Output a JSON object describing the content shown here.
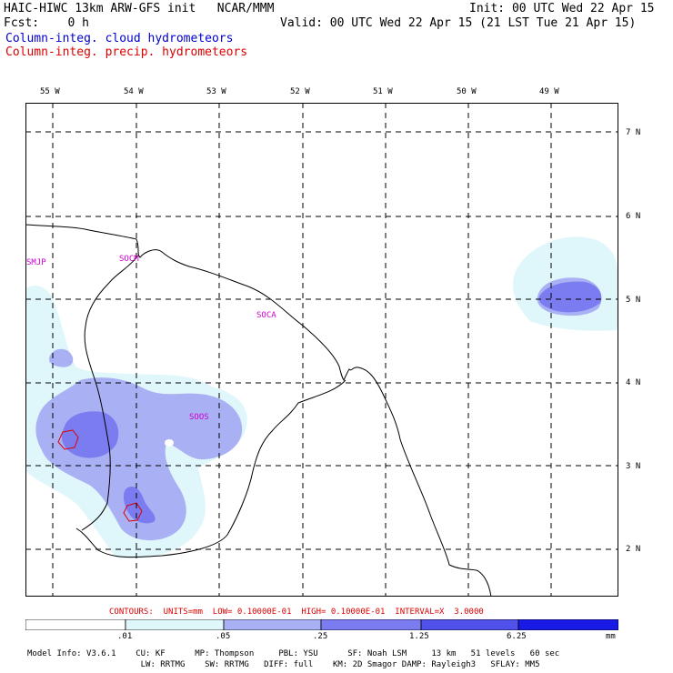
{
  "header": {
    "title": "HAIC-HIWC 13km ARW-GFS init   NCAR/MMM",
    "init": "Init: 00 UTC Wed 22 Apr 15",
    "fcst": "Fcst:    0 h",
    "valid": "Valid: 00 UTC Wed 22 Apr 15 (21 LST Tue 21 Apr 15)",
    "field1": "Column-integ. cloud hydrometeors",
    "field2": "Column-integ. precip. hydrometeors"
  },
  "colors": {
    "field1": "#0000cc",
    "field2": "#dd0000",
    "station": "#cc00cc",
    "shade_1": "#dff6fb",
    "shade_2": "#aab0f4",
    "shade_3": "#7a7cf0",
    "shade_4": "#5050ea",
    "shade_5": "#1a1ae6"
  },
  "map": {
    "lon_labels": [
      "55 W",
      "54 W",
      "53 W",
      "52 W",
      "51 W",
      "50 W",
      "49 W"
    ],
    "lat_labels": [
      "7 N",
      "6 N",
      "5 N",
      "4 N",
      "3 N",
      "2 N"
    ],
    "stations": [
      "SMJP",
      "SOCM",
      "SOCA",
      "SOOS"
    ]
  },
  "legend": {
    "contours": "CONTOURS:  UNITS=mm  LOW= 0.10000E-01  HIGH= 0.10000E-01  INTERVAL=X  3.0000",
    "colorbar_labels": [
      ".01",
      ".05",
      ".25",
      "1.25",
      "6.25"
    ],
    "units": "mm"
  },
  "footer": {
    "line1": "Model Info: V3.6.1    CU: KF      MP: Thompson     PBL: YSU      SF: Noah LSM     13 km   51 levels   60 sec",
    "line2": "                       LW: RRTMG    SW: RRTMG   DIFF: full    KM: 2D Smagor DAMP: Rayleigh3   SFLAY: MM5"
  }
}
